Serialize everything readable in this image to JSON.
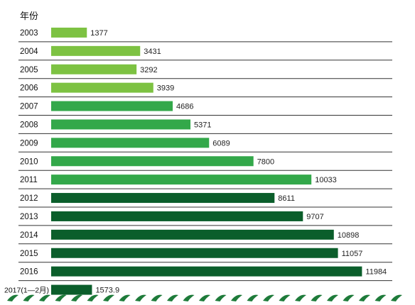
{
  "chart_data": {
    "type": "bar",
    "orientation": "horizontal",
    "ylabel": "年份",
    "categories": [
      "2003",
      "2004",
      "2005",
      "2006",
      "2007",
      "2008",
      "2009",
      "2010",
      "2011",
      "2012",
      "2013",
      "2014",
      "2015",
      "2016",
      "2017(1—2月)"
    ],
    "values": [
      1377,
      3431,
      3292,
      3939,
      4686,
      5371,
      6089,
      7800,
      10033,
      8611,
      9707,
      10898,
      11057,
      11984,
      1573.9
    ],
    "value_labels": [
      "1377",
      "3431",
      "3292",
      "3939",
      "4686",
      "5371",
      "6089",
      "7800",
      "10033",
      "8611",
      "9707",
      "10898",
      "11057",
      "11984",
      "1573.9"
    ],
    "bar_colors": [
      "#7dc242",
      "#7dc242",
      "#7dc242",
      "#7dc242",
      "#33a84a",
      "#33a84a",
      "#33a84a",
      "#33a84a",
      "#33a84a",
      "#0b5e2b",
      "#0b5e2b",
      "#0b5e2b",
      "#0b5e2b",
      "#0b5e2b",
      "#0b5e2b"
    ],
    "xlim": [
      0,
      12000
    ],
    "grid": false,
    "legend": "none"
  },
  "colors": {
    "separator": "#333333",
    "wave": "#1e7b3a"
  }
}
